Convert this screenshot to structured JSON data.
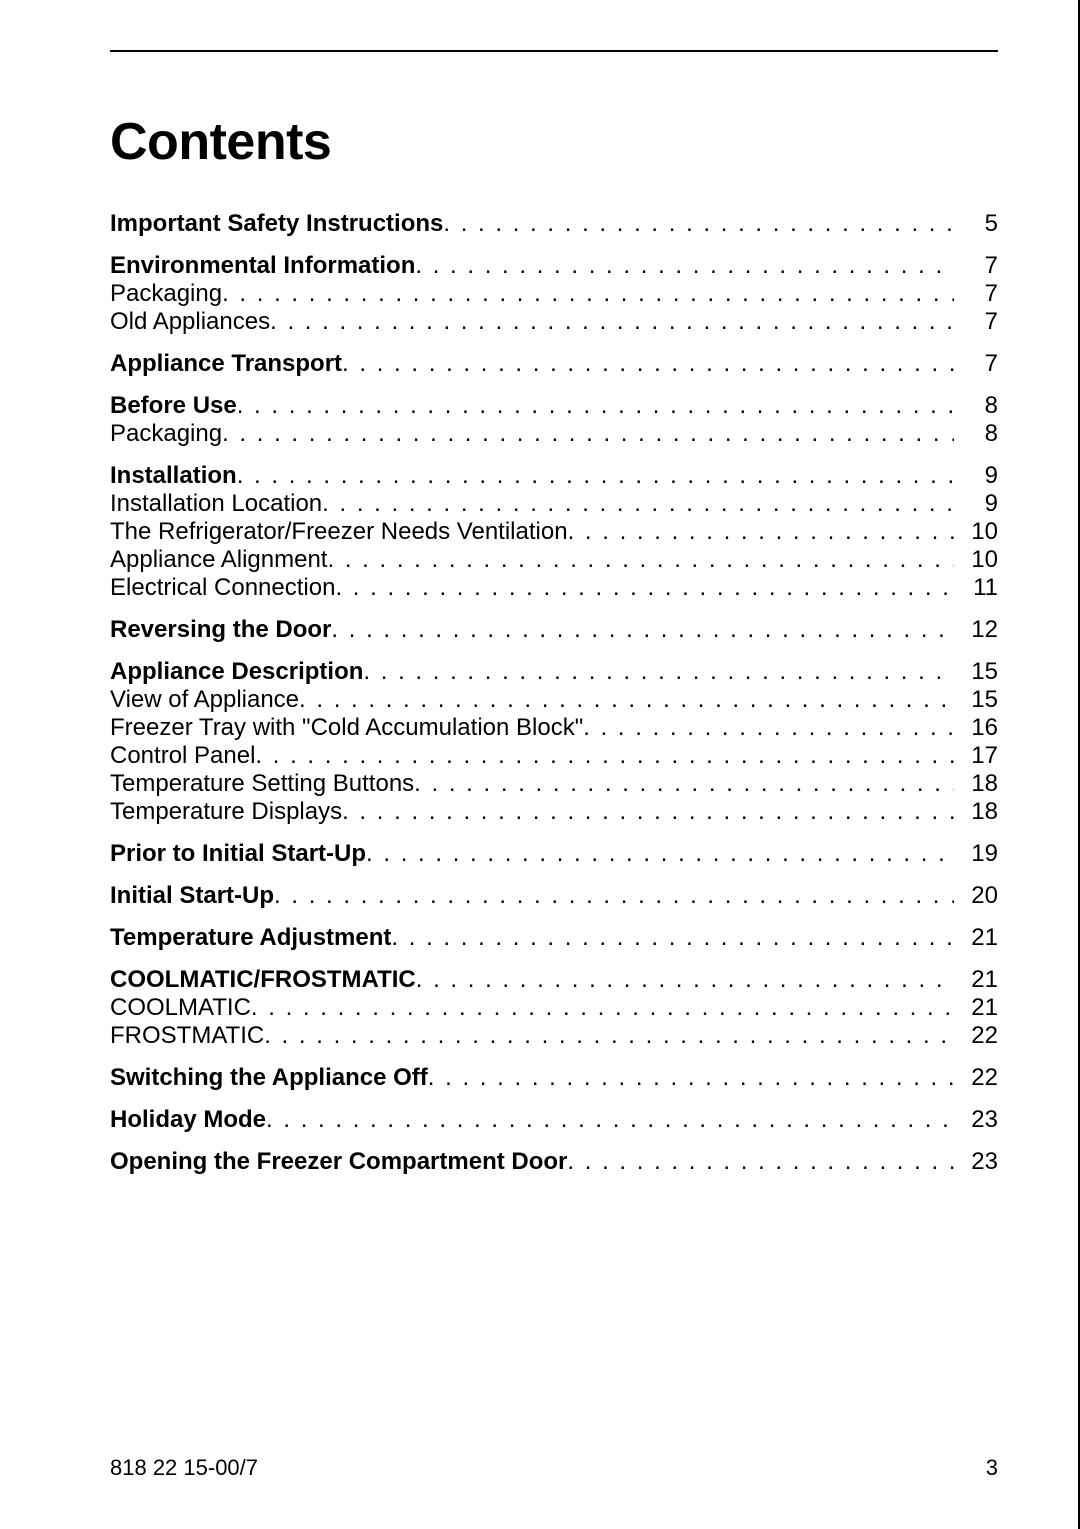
{
  "title": "Contents",
  "footer": {
    "docId": "818 22 15-00/7",
    "pageNumber": "3"
  },
  "toc": [
    {
      "label": "Important Safety Instructions",
      "page": "5",
      "bold": true,
      "sectionStart": false
    },
    {
      "label": "Environmental Information",
      "page": "7",
      "bold": true,
      "sectionStart": true
    },
    {
      "label": "Packaging",
      "page": "7",
      "bold": false,
      "sectionStart": false
    },
    {
      "label": "Old Appliances",
      "page": "7",
      "bold": false,
      "sectionStart": false
    },
    {
      "label": "Appliance Transport",
      "page": "7",
      "bold": true,
      "sectionStart": true
    },
    {
      "label": "Before Use",
      "page": "8",
      "bold": true,
      "sectionStart": true
    },
    {
      "label": "Packaging",
      "page": "8",
      "bold": false,
      "sectionStart": false
    },
    {
      "label": "Installation",
      "page": "9",
      "bold": true,
      "sectionStart": true
    },
    {
      "label": "Installation Location",
      "page": "9",
      "bold": false,
      "sectionStart": false
    },
    {
      "label": "The Refrigerator/Freezer Needs Ventilation",
      "page": "10",
      "bold": false,
      "sectionStart": false
    },
    {
      "label": "Appliance Alignment",
      "page": "10",
      "bold": false,
      "sectionStart": false
    },
    {
      "label": "Electrical Connection",
      "page": "11",
      "bold": false,
      "sectionStart": false
    },
    {
      "label": "Reversing the Door",
      "page": "12",
      "bold": true,
      "sectionStart": true
    },
    {
      "label": "Appliance Description",
      "page": "15",
      "bold": true,
      "sectionStart": true
    },
    {
      "label": "View of Appliance",
      "page": "15",
      "bold": false,
      "sectionStart": false
    },
    {
      "label": "Freezer Tray with \"Cold Accumulation Block\"",
      "page": "16",
      "bold": false,
      "sectionStart": false
    },
    {
      "label": "Control Panel",
      "page": "17",
      "bold": false,
      "sectionStart": false
    },
    {
      "label": "Temperature Setting Buttons",
      "page": "18",
      "bold": false,
      "sectionStart": false
    },
    {
      "label": "Temperature Displays",
      "page": "18",
      "bold": false,
      "sectionStart": false
    },
    {
      "label": "Prior to Initial Start-Up",
      "page": "19",
      "bold": true,
      "sectionStart": true
    },
    {
      "label": "Initial Start-Up",
      "page": "20",
      "bold": true,
      "sectionStart": true
    },
    {
      "label": "Temperature Adjustment",
      "page": "21",
      "bold": true,
      "sectionStart": true
    },
    {
      "label": "COOLMATIC/FROSTMATIC",
      "page": "21",
      "bold": true,
      "sectionStart": true
    },
    {
      "label": "COOLMATIC",
      "page": "21",
      "bold": false,
      "sectionStart": false
    },
    {
      "label": "FROSTMATIC",
      "page": "22",
      "bold": false,
      "sectionStart": false
    },
    {
      "label": "Switching the Appliance Off",
      "page": "22",
      "bold": true,
      "sectionStart": true
    },
    {
      "label": "Holiday Mode",
      "page": "23",
      "bold": true,
      "sectionStart": true
    },
    {
      "label": "Opening the Freezer Compartment Door",
      "page": "23",
      "bold": true,
      "sectionStart": true
    }
  ]
}
